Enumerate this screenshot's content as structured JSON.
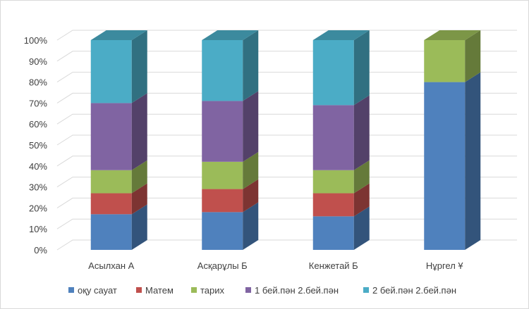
{
  "chart_data": {
    "type": "bar",
    "stacked": "percent",
    "three_d": true,
    "title": "",
    "xlabel": "",
    "ylabel": "",
    "ylim": [
      0,
      100
    ],
    "y_ticks": [
      "0%",
      "10%",
      "20%",
      "30%",
      "40%",
      "50%",
      "60%",
      "70%",
      "80%",
      "90%",
      "100%"
    ],
    "grid": true,
    "legend_position": "bottom",
    "categories": [
      "Асылхан А",
      "Асқарұлы Б",
      "Кенжетай Б",
      "Нұргел Ұ"
    ],
    "series": [
      {
        "name": "оқу сауат",
        "color": "#4F81BD",
        "values": [
          17,
          18,
          16,
          80
        ]
      },
      {
        "name": "Матем",
        "color": "#C0504D",
        "values": [
          10,
          11,
          11,
          0
        ]
      },
      {
        "name": "тарих",
        "color": "#9BBB59",
        "values": [
          11,
          13,
          11,
          20
        ]
      },
      {
        "name": "1 бей.пән  2.бей.пән",
        "color": "#8064A2",
        "values": [
          32,
          29,
          31,
          0
        ]
      },
      {
        "name": "2 бей.пән  2.бей.пән",
        "color": "#4BACC6",
        "values": [
          30,
          29,
          31,
          0
        ]
      }
    ]
  }
}
